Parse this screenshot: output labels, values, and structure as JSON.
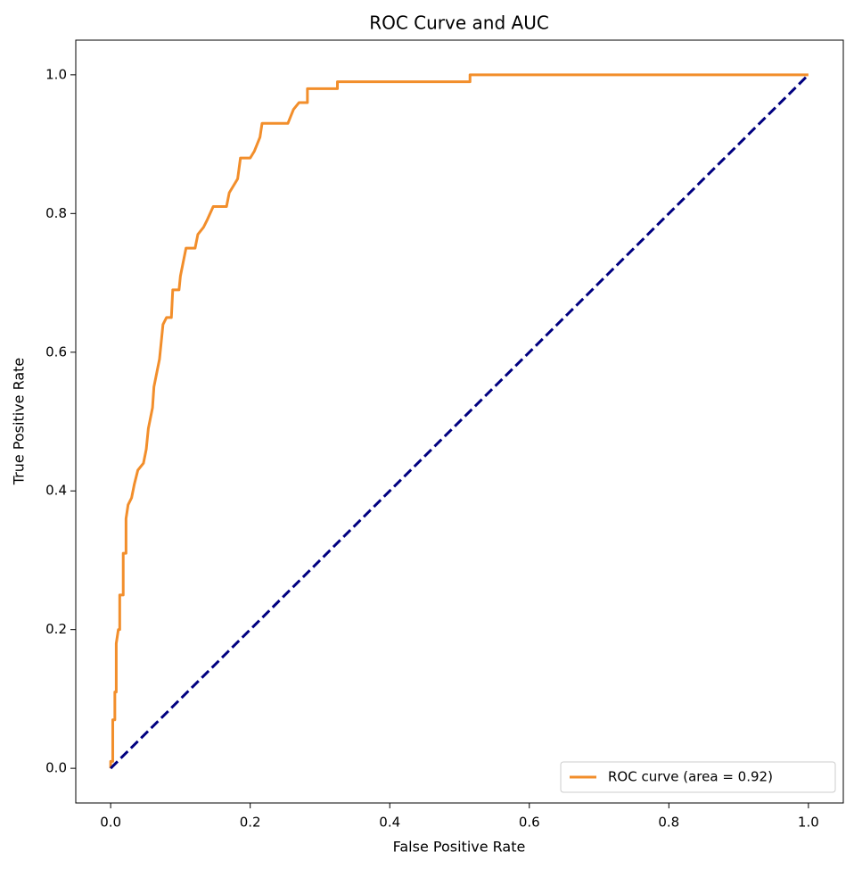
{
  "chart_data": {
    "type": "line",
    "title": "ROC Curve and AUC",
    "xlabel": "False Positive Rate",
    "ylabel": "True Positive Rate",
    "xlim": [
      -0.05,
      1.05
    ],
    "ylim": [
      -0.05,
      1.05
    ],
    "xticks": [
      {
        "value": 0,
        "label": "0.0"
      },
      0.2,
      0.4,
      0.6,
      0.8,
      {
        "value": 1,
        "label": "1.0"
      }
    ],
    "yticks": [
      {
        "value": 0,
        "label": "0.0"
      },
      0.2,
      0.4,
      0.6,
      0.8,
      {
        "value": 1,
        "label": "1.0"
      }
    ],
    "legend": "lower right",
    "grid": false,
    "series": [
      {
        "name": "ROC curve (area = 0.92)",
        "color": "#f28e2b",
        "linestyle": "solid",
        "x": [
          0,
          0,
          0.003,
          0.003,
          0.006,
          0.006,
          0.008,
          0.008,
          0.011,
          0.013,
          0.013,
          0.018,
          0.018,
          0.022,
          0.022,
          0.025,
          0.03,
          0.034,
          0.039,
          0.047,
          0.051,
          0.054,
          0.06,
          0.062,
          0.066,
          0.07,
          0.073,
          0.075,
          0.08,
          0.087,
          0.089,
          0.098,
          0.1,
          0.104,
          0.108,
          0.121,
          0.125,
          0.133,
          0.138,
          0.147,
          0.166,
          0.17,
          0.176,
          0.182,
          0.186,
          0.2,
          0.206,
          0.214,
          0.217,
          0.254,
          0.258,
          0.262,
          0.27,
          0.282,
          0.282,
          0.325,
          0.325,
          0.515,
          0.515,
          1.0
        ],
        "values": [
          0,
          0.01,
          0.01,
          0.07,
          0.07,
          0.11,
          0.11,
          0.18,
          0.2,
          0.2,
          0.25,
          0.25,
          0.31,
          0.31,
          0.36,
          0.38,
          0.39,
          0.41,
          0.43,
          0.44,
          0.46,
          0.49,
          0.52,
          0.55,
          0.57,
          0.59,
          0.62,
          0.64,
          0.65,
          0.65,
          0.69,
          0.69,
          0.71,
          0.73,
          0.75,
          0.75,
          0.77,
          0.78,
          0.79,
          0.81,
          0.81,
          0.83,
          0.84,
          0.85,
          0.88,
          0.88,
          0.89,
          0.91,
          0.93,
          0.93,
          0.94,
          0.95,
          0.96,
          0.96,
          0.98,
          0.98,
          0.99,
          0.99,
          1.0,
          1.0
        ]
      },
      {
        "color": "#000080",
        "linestyle": "dashed",
        "x": [
          0,
          1
        ],
        "values": [
          0,
          1
        ]
      }
    ]
  }
}
